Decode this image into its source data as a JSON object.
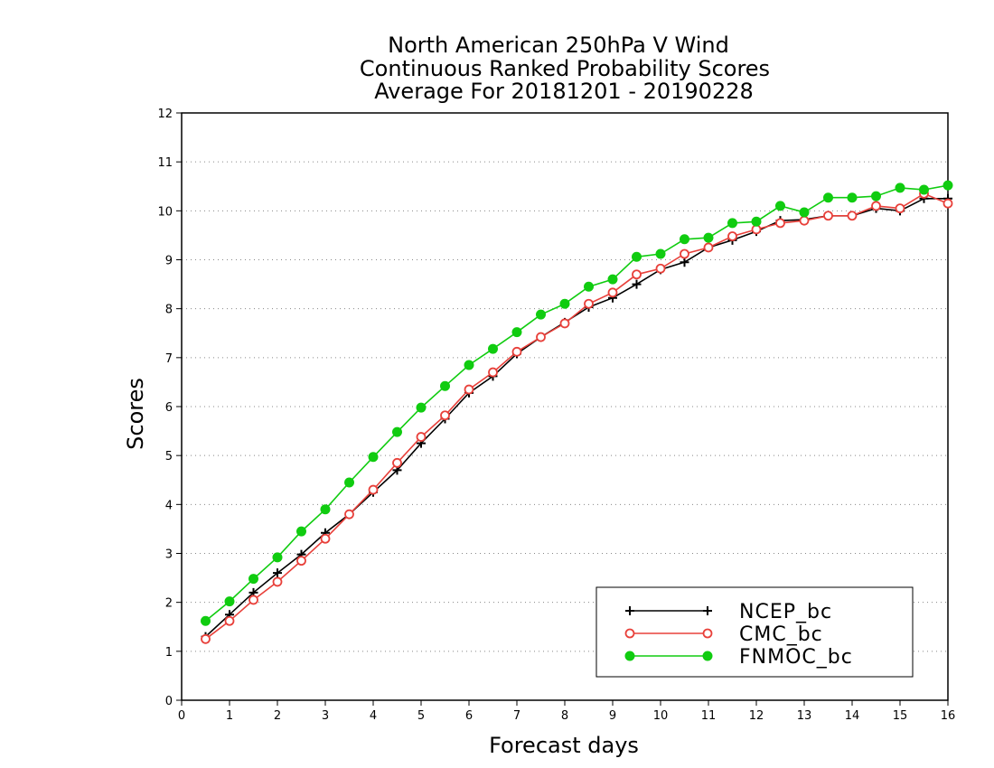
{
  "chart_data": {
    "type": "line",
    "title": [
      "North American 250hPa V Wind",
      "Continuous Ranked Probability Scores",
      "Average For 20181201 - 20190228"
    ],
    "xlabel": "Forecast days",
    "ylabel": "Scores",
    "xlim": [
      0,
      16
    ],
    "ylim": [
      0,
      12
    ],
    "xticks": [
      "0",
      "1",
      "2",
      "3",
      "4",
      "5",
      "6",
      "7",
      "8",
      "9",
      "10",
      "11",
      "12",
      "13",
      "14",
      "15",
      "16"
    ],
    "yticks": [
      "0",
      "1",
      "2",
      "3",
      "4",
      "5",
      "6",
      "7",
      "8",
      "9",
      "10",
      "11",
      "12"
    ],
    "grid": "horizontal dotted",
    "legend_position": "bottom-right",
    "x": [
      0.5,
      1,
      1.5,
      2,
      2.5,
      3,
      3.5,
      4,
      4.5,
      5,
      5.5,
      6,
      6.5,
      7,
      7.5,
      8,
      8.5,
      9,
      9.5,
      10,
      10.5,
      11,
      11.5,
      12,
      12.5,
      13,
      13.5,
      14,
      14.5,
      15,
      15.5,
      16
    ],
    "series": [
      {
        "name": "NCEP_bc",
        "color": "#000000",
        "marker": "plus",
        "values": [
          1.3,
          1.75,
          2.2,
          2.6,
          2.98,
          3.42,
          3.8,
          4.25,
          4.7,
          5.25,
          5.75,
          6.28,
          6.62,
          7.08,
          7.42,
          7.72,
          8.03,
          8.22,
          8.5,
          8.8,
          8.95,
          9.25,
          9.4,
          9.58,
          9.8,
          9.82,
          9.9,
          9.9,
          10.05,
          10.0,
          10.25,
          10.25
        ]
      },
      {
        "name": "CMC_bc",
        "color": "#e8403a",
        "marker": "open-circle",
        "values": [
          1.25,
          1.62,
          2.05,
          2.42,
          2.85,
          3.3,
          3.8,
          4.3,
          4.85,
          5.38,
          5.82,
          6.35,
          6.7,
          7.12,
          7.42,
          7.7,
          8.1,
          8.33,
          8.7,
          8.82,
          9.12,
          9.25,
          9.48,
          9.62,
          9.75,
          9.8,
          9.9,
          9.9,
          10.1,
          10.05,
          10.35,
          10.15
        ]
      },
      {
        "name": "FNMOC_bc",
        "color": "#10cc10",
        "marker": "filled-circle",
        "values": [
          1.62,
          2.02,
          2.48,
          2.92,
          3.45,
          3.9,
          4.45,
          4.97,
          5.48,
          5.98,
          6.42,
          6.85,
          7.18,
          7.52,
          7.88,
          8.1,
          8.45,
          8.6,
          9.06,
          9.12,
          9.42,
          9.45,
          9.75,
          9.78,
          10.1,
          9.97,
          10.27,
          10.27,
          10.3,
          10.47,
          10.43,
          10.52
        ]
      }
    ]
  }
}
